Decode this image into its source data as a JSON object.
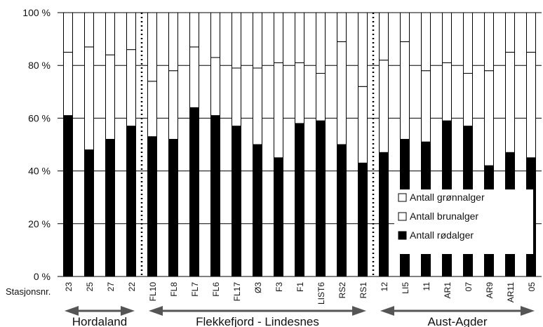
{
  "chart_data": {
    "type": "bar",
    "stacked": true,
    "percent": true,
    "x_axis_label": "Stasjonsnr.",
    "y_ticks": [
      "0 %",
      "20 %",
      "40 %",
      "60 %",
      "80 %",
      "100 %"
    ],
    "ylim": [
      0,
      100
    ],
    "categories": [
      "23",
      "25",
      "27",
      "22",
      "FL10",
      "FL8",
      "FL7",
      "FL6",
      "FL17",
      "Ø3",
      "F3",
      "F1",
      "LIST6",
      "RS2",
      "RS1",
      "12",
      "LI5",
      "11",
      "AR1",
      "07",
      "AR9",
      "AR11",
      "05"
    ],
    "series": [
      {
        "name": "Antall rødalger",
        "color": "#000000",
        "values": [
          61,
          48,
          52,
          57,
          53,
          52,
          64,
          61,
          57,
          50,
          45,
          58,
          59,
          50,
          43,
          47,
          52,
          51,
          59,
          57,
          42,
          47,
          45
        ]
      },
      {
        "name": "Antall brunalger",
        "color": "#ffffff",
        "values": [
          24,
          39,
          32,
          29,
          21,
          26,
          23,
          22,
          22,
          29,
          36,
          23,
          18,
          39,
          29,
          35,
          37,
          27,
          22,
          20,
          36,
          38,
          40
        ]
      },
      {
        "name": "Antall grønnalger",
        "color": "#ffffff",
        "values": [
          15,
          13,
          16,
          14,
          26,
          22,
          13,
          17,
          21,
          21,
          19,
          19,
          23,
          11,
          28,
          18,
          11,
          22,
          19,
          23,
          22,
          15,
          15
        ]
      }
    ],
    "legend_order": [
      "Antall grønnalger",
      "Antall brunalger",
      "Antall rødalger"
    ],
    "legend_position": "bottom-right",
    "groups": [
      {
        "name": "Hordaland",
        "start": 0,
        "end": 3
      },
      {
        "name": "Flekkefjord - Lindesnes",
        "start": 4,
        "end": 14
      },
      {
        "name": "Aust-Agder",
        "start": 15,
        "end": 22
      }
    ]
  }
}
